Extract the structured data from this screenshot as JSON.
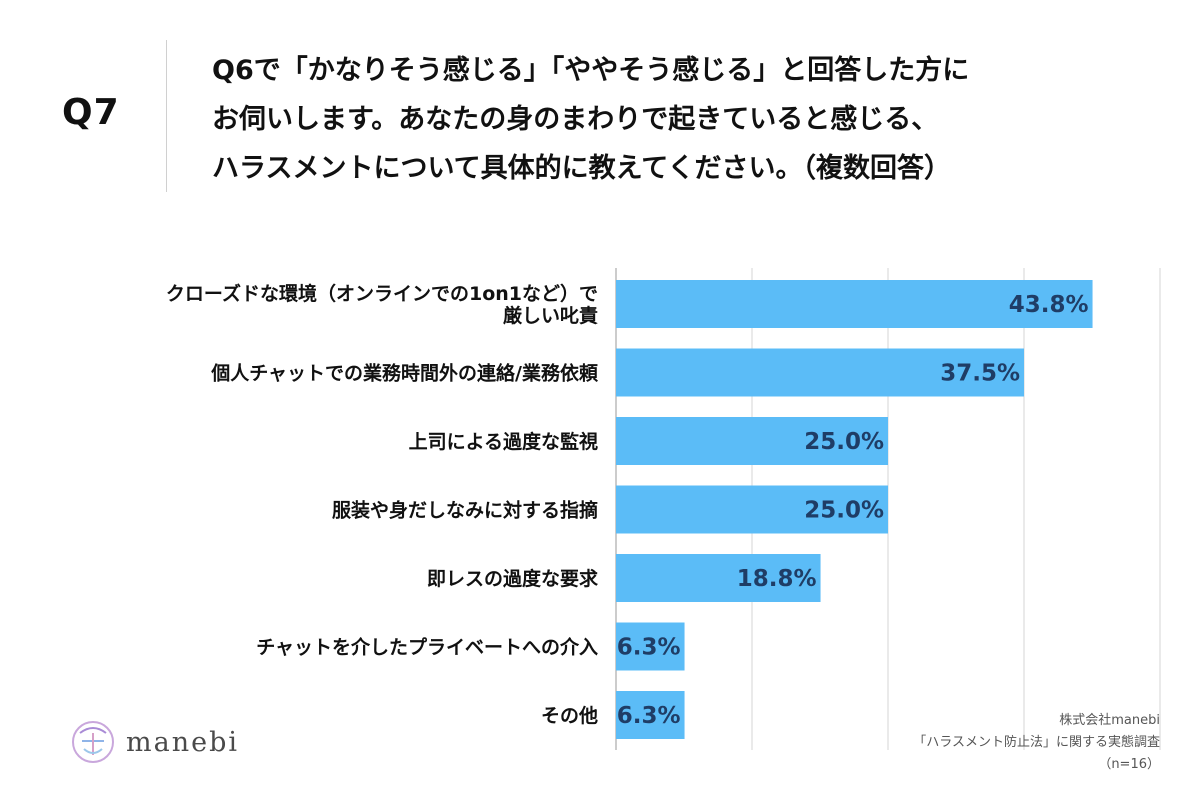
{
  "header": {
    "q_label": "Q7",
    "question_lines": [
      "Q6で「かなりそう感じる」「ややそう感じる」と回答した方に",
      "お伺いします。あなたの身のまわりで起きていると感じる、",
      "ハラスメントについて具体的に教えてください。（複数回答）"
    ]
  },
  "chart_data": {
    "type": "bar",
    "orientation": "horizontal",
    "title": "",
    "xlabel": "",
    "ylabel": "",
    "xlim": [
      0,
      60
    ],
    "grid": true,
    "categories": [
      [
        "クローズドな環境（オンラインでの1on1など）で",
        "厳しい叱責"
      ],
      [
        "個人チャットでの業務時間外の連絡/業務依頼"
      ],
      [
        "上司による過度な監視"
      ],
      [
        "服装や身だしなみに対する指摘"
      ],
      [
        "即レスの過度な要求"
      ],
      [
        "チャットを介したプライベートへの介入"
      ],
      [
        "その他"
      ]
    ],
    "values": [
      43.8,
      37.5,
      25.0,
      25.0,
      18.8,
      6.3,
      6.3
    ],
    "value_labels": [
      "43.8%",
      "37.5%",
      "25.0%",
      "25.0%",
      "18.8%",
      "6.3%",
      "6.3%"
    ],
    "bar_color": "#5bbcf7",
    "grid_color": "#d6d6d6",
    "value_label_color": "#1f3d66"
  },
  "logo": {
    "name": "manebi"
  },
  "source": {
    "lines": [
      "株式会社manebi",
      "「ハラスメント防止法」に関する実態調査",
      "（n=16）"
    ]
  }
}
